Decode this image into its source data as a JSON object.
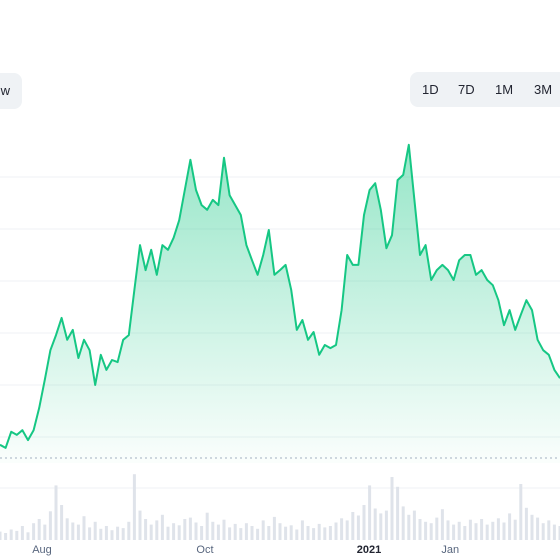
{
  "ui": {
    "view_button": "w",
    "range_buttons": [
      "1D",
      "7D",
      "1M",
      "3M"
    ]
  },
  "chart_data": {
    "type": "area",
    "color": "#16c784",
    "x": [
      0,
      1,
      2,
      3,
      4,
      5,
      6,
      7,
      8,
      9,
      10,
      11,
      12,
      13,
      14,
      15,
      16,
      17,
      18,
      19,
      20,
      21,
      22,
      23,
      24,
      25,
      26,
      27,
      28,
      29,
      30,
      31,
      32,
      33,
      34,
      35,
      36,
      37,
      38,
      39,
      40,
      41,
      42,
      43,
      44,
      45,
      46,
      47,
      48,
      49,
      50,
      51,
      52,
      53,
      54,
      55,
      56,
      57,
      58,
      59,
      60,
      61,
      62,
      63,
      64,
      65,
      66,
      67,
      68,
      69,
      70,
      71,
      72,
      73,
      74,
      75,
      76,
      77,
      78,
      79,
      80,
      81,
      82,
      83,
      84,
      85,
      86,
      87,
      88,
      89,
      90,
      91,
      92,
      93,
      94,
      95,
      96,
      97,
      98,
      99,
      100
    ],
    "values": [
      0.85,
      0.79,
      1.1,
      1.04,
      1.13,
      0.94,
      1.13,
      1.56,
      2.1,
      2.67,
      2.96,
      3.29,
      2.87,
      3.06,
      2.52,
      2.87,
      2.67,
      2.0,
      2.58,
      2.29,
      2.48,
      2.44,
      2.87,
      2.96,
      3.83,
      4.69,
      4.21,
      4.6,
      4.12,
      4.69,
      4.6,
      4.83,
      5.17,
      5.75,
      6.33,
      5.75,
      5.46,
      5.37,
      5.56,
      5.46,
      6.37,
      5.65,
      5.46,
      5.27,
      4.69,
      4.4,
      4.12,
      4.5,
      4.98,
      4.12,
      4.21,
      4.31,
      3.83,
      3.06,
      3.25,
      2.87,
      3.02,
      2.58,
      2.77,
      2.71,
      2.77,
      3.44,
      4.5,
      4.31,
      4.31,
      5.27,
      5.75,
      5.88,
      5.37,
      4.63,
      4.88,
      5.94,
      6.04,
      6.62,
      5.56,
      4.5,
      4.69,
      4.02,
      4.21,
      4.31,
      4.21,
      4.02,
      4.4,
      4.5,
      4.5,
      4.12,
      4.21,
      4.02,
      3.92,
      3.63,
      3.15,
      3.44,
      3.06,
      3.35,
      3.63,
      3.44,
      2.87,
      2.67,
      2.58,
      2.29,
      2.13
    ],
    "volume": [
      1.2,
      1.0,
      1.5,
      1.3,
      2.0,
      1.1,
      2.4,
      3.0,
      2.2,
      4.1,
      7.8,
      5.0,
      3.1,
      2.5,
      2.2,
      3.4,
      1.8,
      2.6,
      1.6,
      2.0,
      1.4,
      1.9,
      1.7,
      2.6,
      9.4,
      4.2,
      3.0,
      2.2,
      2.8,
      3.6,
      1.9,
      2.4,
      2.1,
      3.0,
      3.2,
      2.5,
      2.0,
      3.9,
      2.6,
      2.2,
      2.9,
      1.8,
      2.3,
      1.7,
      2.4,
      2.0,
      1.6,
      2.8,
      2.0,
      3.3,
      2.4,
      1.9,
      2.1,
      1.5,
      2.8,
      2.0,
      1.7,
      2.3,
      1.8,
      2.0,
      2.5,
      3.1,
      2.8,
      4.0,
      3.5,
      5.0,
      7.8,
      4.5,
      3.8,
      4.2,
      9.0,
      7.6,
      4.8,
      3.6,
      4.2,
      3.0,
      2.6,
      2.4,
      3.2,
      4.4,
      2.8,
      2.2,
      2.6,
      2.0,
      2.9,
      2.4,
      3.0,
      2.2,
      2.6,
      3.1,
      2.5,
      3.8,
      2.9,
      8.0,
      4.6,
      3.6,
      3.2,
      2.4,
      2.8,
      2.2,
      2.0
    ],
    "volume_lim": [
      0,
      10
    ],
    "xlim": [
      0,
      100
    ],
    "xticks": [
      {
        "value": 7.5,
        "label": "Aug"
      },
      {
        "value": 36.6,
        "label": "Oct"
      },
      {
        "value": 65.9,
        "label": "2021"
      },
      {
        "value": 80.4,
        "label": "Jan"
      }
    ],
    "ylim": [
      0.5,
      7
    ],
    "ygrid": [
      1,
      2,
      3,
      4,
      5,
      6
    ]
  }
}
